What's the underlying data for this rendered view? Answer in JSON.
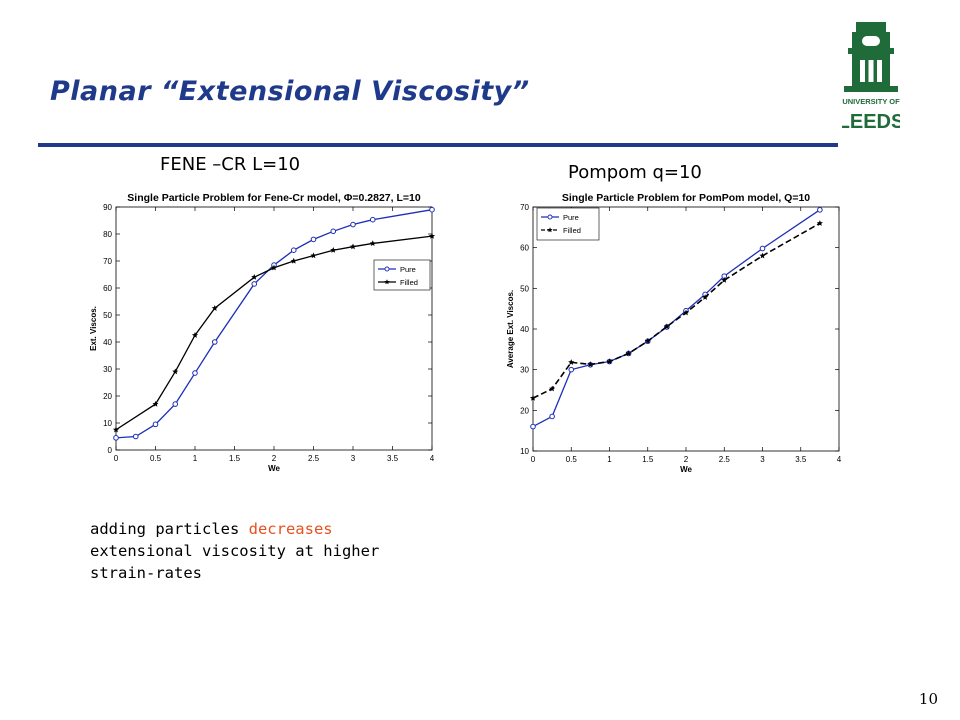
{
  "slide": {
    "title": "Planar “Extensional Viscosity”",
    "page_number": "10",
    "logo_text_top": "UNIVERSITY OF",
    "logo_text_bottom": "LEEDS",
    "logo_color": "#1f6b3a"
  },
  "captions": {
    "left": "FENE –CR L=10",
    "right": "Pompom q=10"
  },
  "note": {
    "line1_prefix": "adding particles ",
    "line1_highlight": "decreases",
    "line2": "extensional viscosity at higher",
    "line3": "strain-rates",
    "highlight_color": "#e8501e"
  },
  "chart_data": [
    {
      "type": "line",
      "title": "Single Particle Problem for Fene-Cr model, Φ=0.2827, L=10",
      "xlabel": "We",
      "ylabel": "Ext. Viscos.",
      "xlim": [
        0,
        4
      ],
      "ylim": [
        0,
        90
      ],
      "xticks": [
        0,
        0.5,
        1,
        1.5,
        2,
        2.5,
        3,
        3.5,
        4
      ],
      "yticks": [
        0,
        10,
        20,
        30,
        40,
        50,
        60,
        70,
        80,
        90
      ],
      "grid": false,
      "legend_position": "right-middle",
      "series": [
        {
          "name": "Pure",
          "color": "#1c2fb8",
          "marker": "circle",
          "dash": "solid",
          "x": [
            0,
            0.25,
            0.5,
            0.75,
            1.0,
            1.25,
            1.75,
            2.0,
            2.25,
            2.5,
            2.75,
            3.0,
            3.25,
            4.0
          ],
          "y": [
            4.5,
            5,
            9.5,
            17,
            28.5,
            40,
            61.5,
            68.5,
            74,
            78,
            81,
            83.5,
            85.3,
            89
          ]
        },
        {
          "name": "Filled",
          "color": "#000000",
          "marker": "star",
          "dash": "solid",
          "x": [
            0,
            0.5,
            0.75,
            1.0,
            1.25,
            1.75,
            2.0,
            2.25,
            2.5,
            2.75,
            3.0,
            3.25,
            4.0
          ],
          "y": [
            7.5,
            17,
            29,
            42.5,
            52.5,
            64,
            67.5,
            70,
            72,
            74,
            75.3,
            76.5,
            79.2
          ]
        }
      ]
    },
    {
      "type": "line",
      "title": "Single Particle Problem for PomPom model, Q=10",
      "xlabel": "We",
      "ylabel": "Average Ext. Viscos.",
      "xlim": [
        0,
        4
      ],
      "ylim": [
        10,
        70
      ],
      "xticks": [
        0,
        0.5,
        1,
        1.5,
        2,
        2.5,
        3,
        3.5,
        4
      ],
      "yticks": [
        10,
        20,
        30,
        40,
        50,
        60,
        70
      ],
      "grid": false,
      "legend_position": "top-left",
      "series": [
        {
          "name": "Pure",
          "color": "#1c2fb8",
          "marker": "circle",
          "dash": "solid",
          "x": [
            0,
            0.25,
            0.5,
            0.75,
            1.0,
            1.25,
            1.5,
            1.75,
            2.0,
            2.25,
            2.5,
            3.0,
            3.75
          ],
          "y": [
            16,
            18.5,
            30,
            31.2,
            32,
            34,
            37,
            40.5,
            44.5,
            48.5,
            53,
            59.8,
            69.3
          ]
        },
        {
          "name": "Filled",
          "color": "#000000",
          "marker": "star",
          "dash": "dashed",
          "x": [
            0,
            0.25,
            0.5,
            0.75,
            1.0,
            1.25,
            1.5,
            1.75,
            2.0,
            2.25,
            2.5,
            3.0,
            3.75
          ],
          "y": [
            23,
            25.3,
            31.8,
            31.3,
            32,
            34,
            37,
            40.6,
            44,
            47.8,
            52,
            58,
            66
          ]
        }
      ]
    }
  ]
}
